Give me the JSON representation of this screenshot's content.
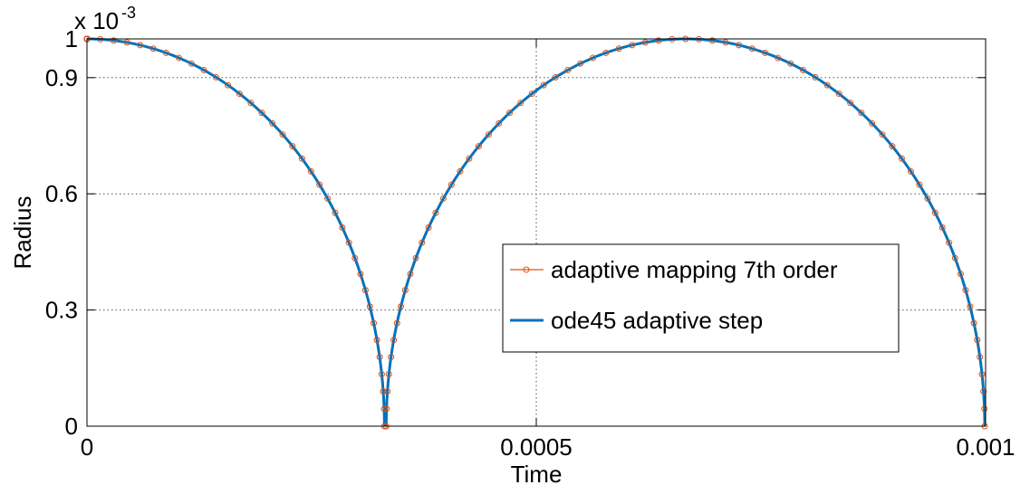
{
  "chart_data": {
    "type": "line",
    "xlabel": "Time",
    "ylabel": "Radius",
    "xlim": [
      0,
      0.001
    ],
    "ylim": [
      0,
      1
    ],
    "scale_base": "x 10",
    "scale_exponent": "-3",
    "xticks": [
      0,
      0.0005,
      0.001
    ],
    "xtick_labels": [
      "0",
      "0.0005",
      "0.001"
    ],
    "yticks": [
      0,
      0.3,
      0.6,
      0.9,
      1
    ],
    "ytick_labels": [
      "0",
      "0.3",
      "0.6",
      "0.9",
      "1"
    ],
    "grid": true,
    "legend_position": "inside-right",
    "series": [
      {
        "name": "adaptive mapping 7th order",
        "color": "#d95319",
        "marker": "circle",
        "segments": [
          {
            "center": 0,
            "half_period": 0.000331
          },
          {
            "center": 0.000666,
            "half_period": 0.000333
          }
        ]
      },
      {
        "name": "ode45 adaptive step",
        "color": "#0072bd",
        "marker": "none",
        "segments": [
          {
            "center": 0,
            "half_period": 0.000331
          },
          {
            "center": 0.000666,
            "half_period": 0.000333
          }
        ]
      }
    ]
  }
}
